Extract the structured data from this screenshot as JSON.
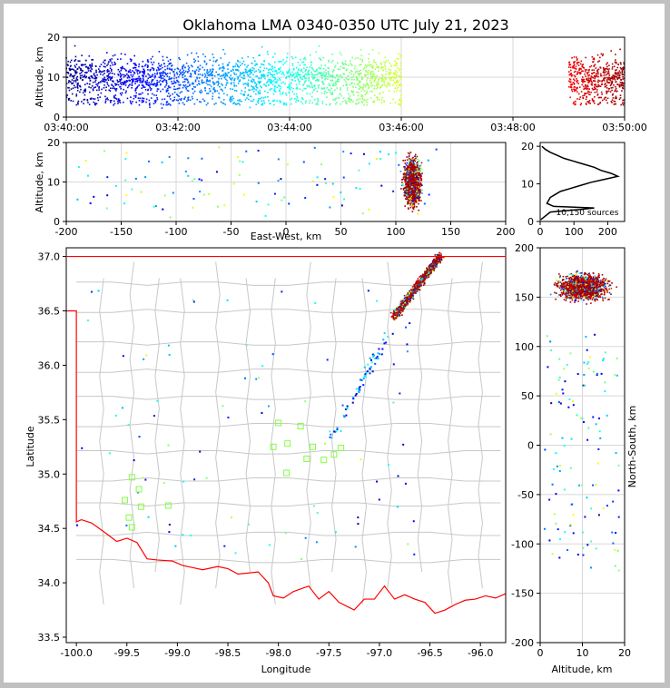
{
  "chart_data": {
    "type": "scatter",
    "title": "Oklahoma LMA 0340-0350 UTC July 21, 2023",
    "panels": [
      {
        "id": "time-height",
        "type": "scatter",
        "xlabel": "",
        "ylabel": "Altitude, km",
        "x_ticks": [
          "03:40:00",
          "03:42:00",
          "03:44:00",
          "03:46:00",
          "03:48:00",
          "03:50:00"
        ],
        "xlim": [
          "03:40:00",
          "03:50:00"
        ],
        "ylim": [
          0,
          20
        ],
        "y_ticks": [
          0,
          10,
          20
        ],
        "grid": true,
        "source_periods": [
          {
            "start": "03:40:00",
            "end": "03:46:00",
            "alt_range": [
              2,
              20
            ],
            "color_by": "time"
          },
          {
            "start": "03:49:00",
            "end": "03:50:00",
            "alt_range": [
              3,
              18
            ],
            "color_by": "time"
          }
        ]
      },
      {
        "id": "ew-height",
        "type": "scatter",
        "xlabel": "East-West, km",
        "ylabel": "Altitude, km",
        "xlim": [
          -200,
          200
        ],
        "x_ticks": [
          -200,
          -150,
          -100,
          -50,
          0,
          50,
          100,
          150,
          200
        ],
        "ylim": [
          0,
          20
        ],
        "y_ticks": [
          0,
          10,
          20
        ],
        "grid": true
      },
      {
        "id": "altitude-histogram",
        "type": "line",
        "xlim": [
          0,
          250
        ],
        "x_ticks": [
          0,
          100,
          200
        ],
        "ylim": [
          0,
          21
        ],
        "y_ticks": [
          0,
          10,
          20
        ],
        "annotation": "10,150 sources",
        "profile": [
          [
            2,
            0.5
          ],
          [
            30,
            2.5
          ],
          [
            120,
            3.2
          ],
          [
            160,
            3.6
          ],
          [
            40,
            4.0
          ],
          [
            20,
            4.8
          ],
          [
            25,
            5.6
          ],
          [
            30,
            6.4
          ],
          [
            45,
            7.2
          ],
          [
            60,
            8.0
          ],
          [
            90,
            8.8
          ],
          [
            120,
            9.6
          ],
          [
            150,
            10.4
          ],
          [
            190,
            11.2
          ],
          [
            230,
            12.0
          ],
          [
            210,
            12.8
          ],
          [
            180,
            13.6
          ],
          [
            160,
            14.4
          ],
          [
            130,
            15.2
          ],
          [
            100,
            16.0
          ],
          [
            70,
            16.8
          ],
          [
            50,
            17.6
          ],
          [
            30,
            18.4
          ],
          [
            15,
            19.2
          ],
          [
            5,
            20.0
          ]
        ]
      },
      {
        "id": "plan-view",
        "type": "scatter",
        "xlabel": "Longitude",
        "ylabel": "Latitude",
        "xlim": [
          -100.1,
          -95.75
        ],
        "x_ticks": [
          -100.0,
          -99.5,
          -99.0,
          -98.5,
          -98.0,
          -97.5,
          -97.0,
          -96.5,
          -96.0
        ],
        "ylim": [
          33.45,
          37.08
        ],
        "y_ticks": [
          33.5,
          34.0,
          34.5,
          35.0,
          35.5,
          36.0,
          36.5,
          37.0
        ],
        "stations": [
          [
            -99.45,
            34.97
          ],
          [
            -99.52,
            34.76
          ],
          [
            -99.38,
            34.86
          ],
          [
            -99.36,
            34.7
          ],
          [
            -99.48,
            34.6
          ],
          [
            -99.45,
            34.51
          ],
          [
            -99.09,
            34.71
          ],
          [
            -98.0,
            35.47
          ],
          [
            -97.91,
            35.28
          ],
          [
            -97.78,
            35.44
          ],
          [
            -98.05,
            35.25
          ],
          [
            -97.92,
            35.01
          ],
          [
            -97.72,
            35.14
          ],
          [
            -97.66,
            35.25
          ],
          [
            -97.55,
            35.13
          ],
          [
            -97.45,
            35.18
          ],
          [
            -97.38,
            35.24
          ]
        ],
        "station_color": "#80ff40"
      },
      {
        "id": "ns-height",
        "type": "scatter",
        "xlabel": "Altitude, km",
        "ylabel": "North-South, km",
        "xlim": [
          0,
          20
        ],
        "x_ticks": [
          0,
          10,
          20
        ],
        "ylim": [
          -200,
          200
        ],
        "y_ticks": [
          -200,
          -150,
          -100,
          -50,
          0,
          50,
          100,
          150,
          200
        ],
        "grid": true
      }
    ],
    "colormap": [
      "#00008f",
      "#0000ff",
      "#0080ff",
      "#00ffff",
      "#80ff80",
      "#ffff00",
      "#ff8000",
      "#ff0000",
      "#800000"
    ],
    "boundary_color": "#ff0000",
    "county_color": "#c8c8c8"
  }
}
